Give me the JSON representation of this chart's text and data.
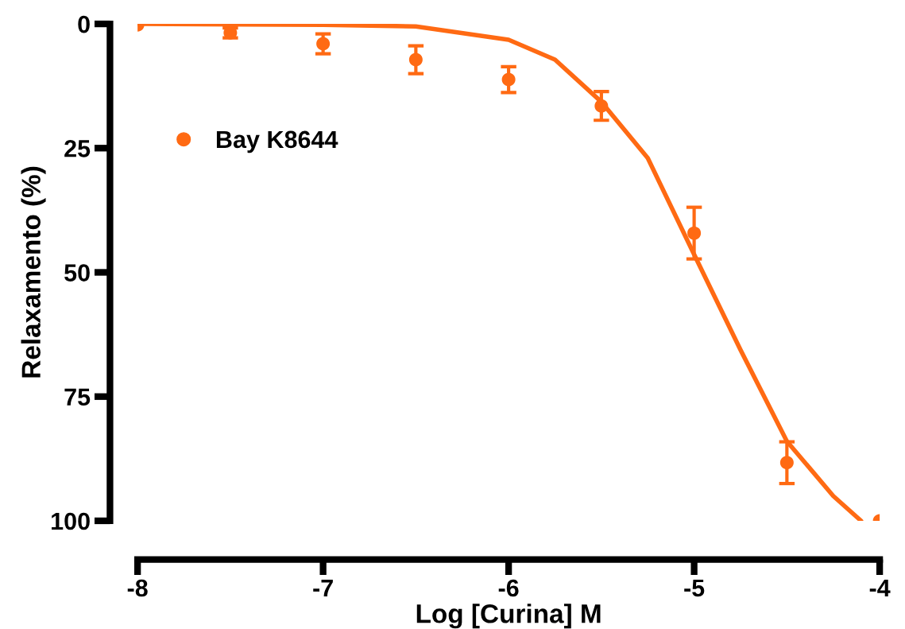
{
  "chart_data": {
    "type": "scatter",
    "xlabel": "Log [Curina] M",
    "ylabel": "Relaxamento (%)",
    "xlim": [
      -8,
      -4
    ],
    "xticks": [
      {
        "value": -8,
        "label": "-8"
      },
      {
        "value": -7,
        "label": "-7"
      },
      {
        "value": -6,
        "label": "-6"
      },
      {
        "value": -5,
        "label": "-5"
      },
      {
        "value": -4,
        "label": "-4"
      }
    ],
    "ylim": [
      100,
      0
    ],
    "yticks": [
      0,
      25,
      50,
      75,
      100
    ],
    "grid": false,
    "legend": "top left",
    "series": [
      {
        "type": "line",
        "color": "#ff6a13",
        "marker": "none",
        "line_style": "solid",
        "x": [
          -8,
          -7,
          -6.5,
          -6,
          -5.75,
          -5.5,
          -5.25,
          -5,
          -4.75,
          -4.5,
          -4.25,
          -4.1
        ],
        "values": [
          0,
          0.2,
          0.5,
          3.2,
          7.2,
          15.7,
          27,
          46.4,
          65.6,
          84,
          95,
          100
        ]
      },
      {
        "name": "Bay K8644",
        "color": "#ff6a13",
        "marker": "circle",
        "x": [
          -8,
          -7.5,
          -7,
          -6.5,
          -6,
          -5.5,
          -5,
          -4.5,
          -4
        ],
        "values": [
          0.2,
          1.8,
          4,
          7.2,
          11.2,
          16.5,
          42.1,
          88.3,
          100
        ],
        "errors": [
          null,
          1,
          2,
          2.8,
          2.6,
          2.9,
          5.2,
          4.2,
          null
        ]
      }
    ]
  }
}
